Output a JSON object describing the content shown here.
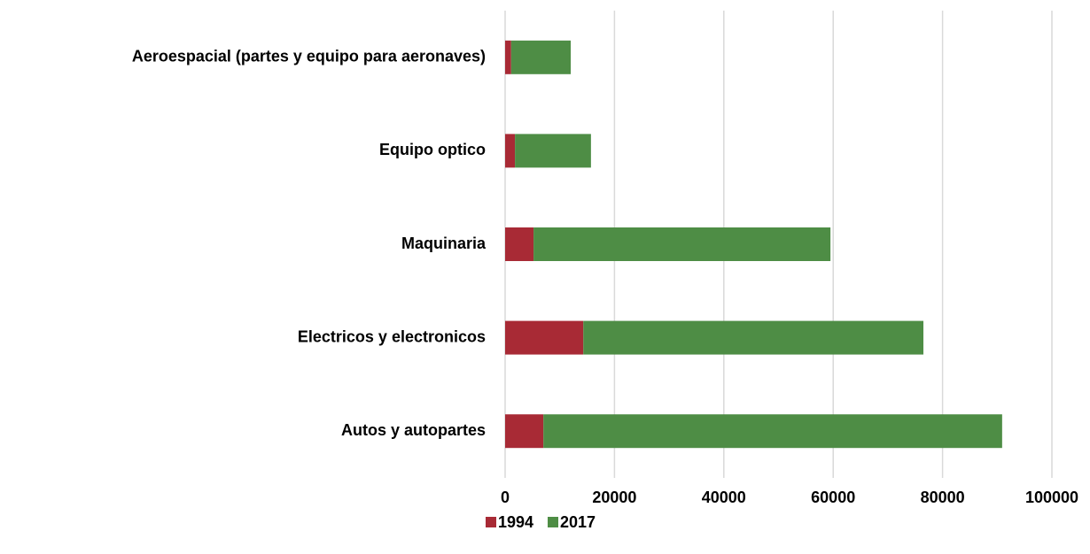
{
  "chart_data": {
    "type": "bar",
    "orientation": "horizontal",
    "stacked": true,
    "categories": [
      "Aeroespacial (partes y equipo para aeronaves)",
      "Equipo optico",
      "Maquinaria",
      "Electricos y electronicos",
      "Autos y autopartes"
    ],
    "series": [
      {
        "name": "1994",
        "color": "#a82a35",
        "values": [
          1100,
          1800,
          5200,
          14300,
          7000
        ]
      },
      {
        "name": "2017",
        "color": "#4e8d45",
        "values": [
          10900,
          13900,
          54300,
          62200,
          83900
        ]
      }
    ],
    "xlim": [
      0,
      100000
    ],
    "xticks": [
      0,
      20000,
      40000,
      60000,
      80000,
      100000
    ],
    "grid": true,
    "legend": "bottom"
  }
}
